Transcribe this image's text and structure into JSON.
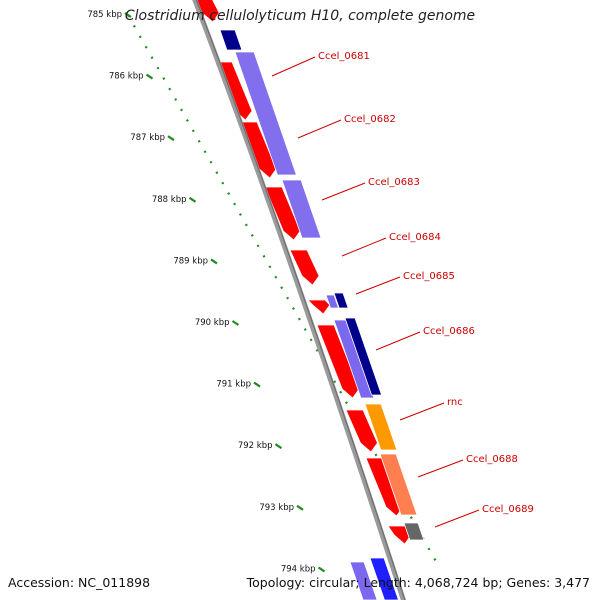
{
  "title": "Clostridium cellulolyticum H10, complete genome",
  "footer": {
    "accession": "Accession: NC_011898",
    "summary": "Topology: circular; Length: 4,068,724 bp; Genes: 3,477"
  },
  "scale_ticks": [
    "785 kbp",
    "786 kbp",
    "787 kbp",
    "788 kbp",
    "789 kbp",
    "790 kbp",
    "791 kbp",
    "792 kbp",
    "793 kbp",
    "794 kbp"
  ],
  "gene_labels": [
    "Ccel_0681",
    "Ccel_0682",
    "Ccel_0683",
    "Ccel_0684",
    "Ccel_0685",
    "Ccel_0686",
    "rnc",
    "Ccel_0688",
    "Ccel_0689"
  ],
  "colors": {
    "backbone": "#888888",
    "cds_forward": "#ff0000",
    "feature_purple": "#7b68ee",
    "feature_navy": "#00008b",
    "feature_orange": "#ff9900",
    "feature_salmon": "#ff7f50",
    "feature_grey": "#666666",
    "feature_blue": "#1f1fff",
    "tick_green": "#228b22",
    "label_red": "#cc0000"
  }
}
